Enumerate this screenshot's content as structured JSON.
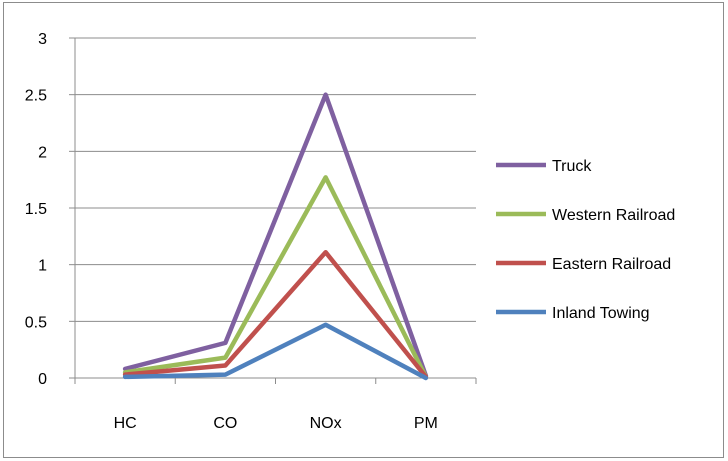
{
  "chart_data": {
    "type": "line",
    "title": "",
    "xlabel": "",
    "ylabel": "",
    "categories": [
      "HC",
      "CO",
      "NOx",
      "PM"
    ],
    "ylim": [
      0,
      3
    ],
    "yticks": [
      "0",
      "0.5",
      "1",
      "1.5",
      "2",
      "2.5",
      "3"
    ],
    "grid": true,
    "legend_position": "right",
    "series": [
      {
        "name": "Truck",
        "color": "#7f60a0",
        "values": [
          0.08,
          0.31,
          2.5,
          0.02
        ]
      },
      {
        "name": "Western Railroad",
        "color": "#9bbb59",
        "values": [
          0.05,
          0.18,
          1.77,
          0.01
        ]
      },
      {
        "name": "Eastern Railroad",
        "color": "#c0504d",
        "values": [
          0.03,
          0.11,
          1.11,
          0.01
        ]
      },
      {
        "name": "Inland Towing",
        "color": "#4f81bd",
        "values": [
          0.01,
          0.03,
          0.47,
          0.0
        ]
      }
    ]
  }
}
